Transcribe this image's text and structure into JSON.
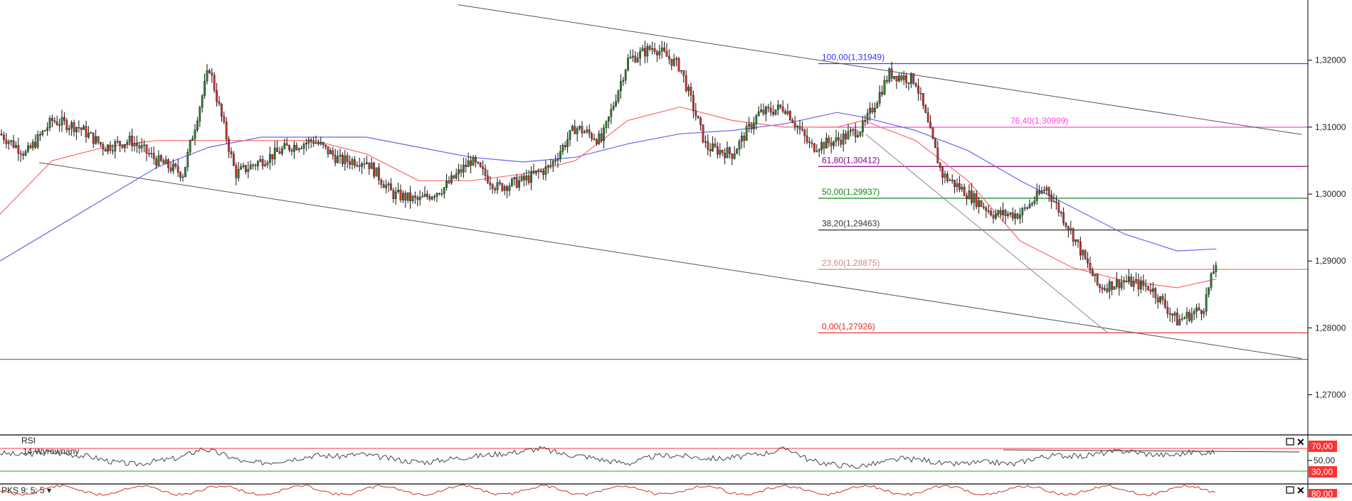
{
  "chart_data": {
    "type": "candlestick",
    "price_axis": {
      "ticks": [
        "1,32000",
        "1,31000",
        "1,30000",
        "1,29000",
        "1,28000",
        "1,27000"
      ],
      "tick_values": [
        1.32,
        1.31,
        1.3,
        1.29,
        1.28,
        1.27
      ],
      "ylim": [
        1.264,
        1.329
      ]
    },
    "fibonacci": {
      "levels": [
        {
          "label": "100,00(1,31949)",
          "value": 1.31949,
          "color": "#3333ff"
        },
        {
          "label": "76,40(1,30999)",
          "value": 1.30999,
          "color": "#ff44dd"
        },
        {
          "label": "61,80(1,30412)",
          "value": 1.30412,
          "color": "#880088"
        },
        {
          "label": "50,00(1,29937)",
          "value": 1.29937,
          "color": "#118811"
        },
        {
          "label": "38,20(1,29463)",
          "value": 1.29463,
          "color": "#333333"
        },
        {
          "label": "23,60(1,28875)",
          "value": 1.28875,
          "color": "#cc8888"
        },
        {
          "label": "0,00(1,27926)",
          "value": 1.27926,
          "color": "#ee2222"
        }
      ]
    },
    "horizontal_line": {
      "value": 1.2753,
      "color": "#777777"
    },
    "trend_channel": {
      "upper": {
        "x": [
          0.35,
          0.9953
        ],
        "y": [
          1.3283,
          1.3089
        ]
      },
      "lower": {
        "x": [
          0.03,
          0.9953
        ],
        "y": [
          1.3047,
          1.2754
        ]
      },
      "projection": {
        "x": [
          0.6621,
          0.8467
        ],
        "y": [
          1.3089,
          1.2793
        ]
      }
    },
    "price_series": {
      "x": [
        0.0,
        0.02,
        0.04,
        0.06,
        0.08,
        0.1,
        0.12,
        0.14,
        0.16,
        0.18,
        0.2,
        0.22,
        0.24,
        0.26,
        0.28,
        0.3,
        0.32,
        0.34,
        0.36,
        0.38,
        0.4,
        0.42,
        0.44,
        0.46,
        0.48,
        0.5,
        0.52,
        0.54,
        0.56,
        0.58,
        0.6,
        0.62,
        0.64,
        0.66,
        0.68,
        0.7,
        0.72,
        0.74,
        0.76,
        0.78,
        0.8,
        0.82,
        0.84,
        0.86,
        0.88,
        0.9,
        0.92,
        0.93
      ],
      "close": [
        1.309,
        1.306,
        1.311,
        1.31,
        1.307,
        1.308,
        1.305,
        1.303,
        1.319,
        1.303,
        1.305,
        1.307,
        1.308,
        1.305,
        1.305,
        1.3,
        1.299,
        1.301,
        1.305,
        1.301,
        1.302,
        1.304,
        1.31,
        1.308,
        1.32,
        1.322,
        1.319,
        1.307,
        1.306,
        1.312,
        1.313,
        1.307,
        1.308,
        1.31,
        1.318,
        1.317,
        1.303,
        1.3,
        1.297,
        1.297,
        1.301,
        1.294,
        1.286,
        1.287,
        1.286,
        1.281,
        1.283,
        1.29
      ]
    },
    "ma_fast": {
      "color": "#ff6666",
      "x": [
        0.0,
        0.04,
        0.08,
        0.12,
        0.16,
        0.2,
        0.24,
        0.28,
        0.32,
        0.36,
        0.4,
        0.44,
        0.48,
        0.52,
        0.56,
        0.6,
        0.64,
        0.66,
        0.7,
        0.74,
        0.78,
        0.82,
        0.86,
        0.9,
        0.93
      ],
      "y": [
        1.297,
        1.305,
        1.307,
        1.308,
        1.308,
        1.308,
        1.308,
        1.306,
        1.302,
        1.302,
        1.303,
        1.305,
        1.311,
        1.313,
        1.311,
        1.31,
        1.31,
        1.311,
        1.308,
        1.302,
        1.293,
        1.289,
        1.287,
        1.286,
        1.2873
      ]
    },
    "ma_slow": {
      "color": "#6666ee",
      "x": [
        0.0,
        0.06,
        0.12,
        0.16,
        0.2,
        0.28,
        0.36,
        0.4,
        0.44,
        0.48,
        0.52,
        0.56,
        0.6,
        0.64,
        0.66,
        0.7,
        0.74,
        0.78,
        0.82,
        0.86,
        0.9,
        0.93
      ],
      "y": [
        1.29,
        1.297,
        1.304,
        1.307,
        1.3085,
        1.3085,
        1.3055,
        1.3048,
        1.3055,
        1.3075,
        1.309,
        1.3095,
        1.3105,
        1.3122,
        1.3115,
        1.3095,
        1.3065,
        1.302,
        1.298,
        1.294,
        1.2915,
        1.2918
      ]
    }
  },
  "rsi_panel": {
    "title": "RSI",
    "subtitle": "14 Wyrównany",
    "levels": {
      "upper": "70,00",
      "middle": "50,00",
      "lower": "30,00"
    },
    "level_values": [
      70,
      50,
      30
    ],
    "upper_color": "#ff3333",
    "lower_color": "#22aa22",
    "series": [
      62,
      58,
      64,
      60,
      56,
      46,
      42,
      48,
      54,
      70,
      58,
      44,
      46,
      52,
      58,
      56,
      60,
      54,
      48,
      46,
      52,
      56,
      60,
      64,
      70,
      60,
      56,
      48,
      44,
      56,
      58,
      54,
      52,
      56,
      62,
      70,
      48,
      42,
      38,
      44,
      52,
      50,
      42,
      44,
      46,
      42,
      54,
      58,
      56,
      62,
      66,
      60,
      58,
      64,
      62
    ]
  },
  "pks_panel": {
    "title": "PKS 9; 5; 5 ▾",
    "level_badge": "80,00",
    "badge_color": "#ff3333"
  },
  "panel_controls": {
    "rsi": {
      "maximize_icon": "maximize-icon",
      "close_icon": "close-icon"
    },
    "pks": {
      "maximize_icon": "maximize-icon",
      "close_icon": "close-icon"
    }
  },
  "colors": {
    "up_candle": "#2e7d32",
    "down_candle": "#d32f2f",
    "wick": "#111111",
    "channel": "#555555",
    "axis": "#000000",
    "rsi_line": "#444444"
  }
}
